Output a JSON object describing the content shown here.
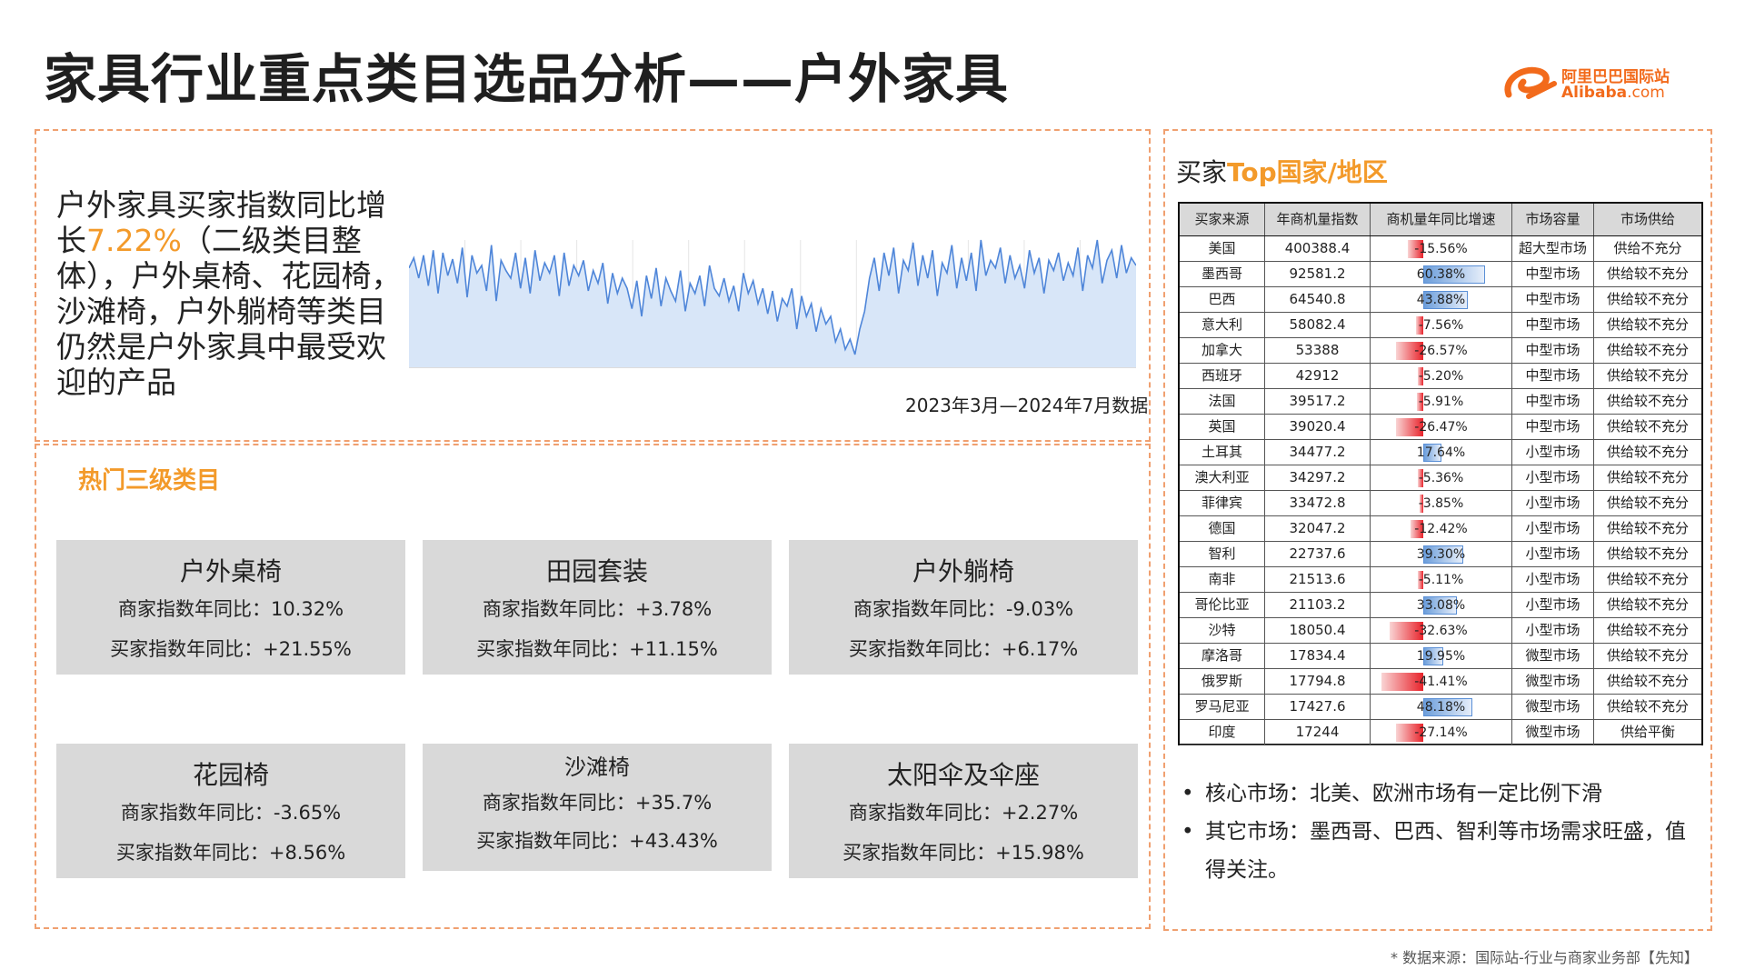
{
  "page_title": "家具行业重点类目选品分析——户外家具",
  "logo": {
    "cn": "阿里巴巴国际站",
    "en_main": "Alibaba",
    "en_suffix": ".com"
  },
  "intro": {
    "before": "户外家具买家指数同比增长",
    "highlight": "7.22%",
    "after": "（二级类目整体），户外桌椅、花园椅，沙滩椅，户外躺椅等类目仍然是户外家具中最受欢迎的产品"
  },
  "trend_caption": "2023年3月—2024年7月数据",
  "chart_data": {
    "type": "area",
    "title": "",
    "xlabel": "",
    "ylabel": "",
    "x_range": [
      "2023年3月",
      "2024年7月"
    ],
    "ylim": [
      0,
      100
    ],
    "values": [
      78,
      86,
      70,
      88,
      64,
      92,
      58,
      90,
      72,
      85,
      66,
      94,
      55,
      88,
      74,
      80,
      60,
      96,
      52,
      84,
      76,
      70,
      90,
      62,
      86,
      58,
      92,
      68,
      82,
      74,
      88,
      56,
      90,
      64,
      80,
      72,
      84,
      60,
      76,
      66,
      82,
      50,
      74,
      58,
      70,
      62,
      46,
      68,
      40,
      72,
      54,
      78,
      48,
      70,
      60,
      52,
      76,
      44,
      66,
      58,
      72,
      48,
      80,
      62,
      56,
      70,
      52,
      64,
      44,
      74,
      58,
      68,
      50,
      62,
      42,
      60,
      36,
      54,
      48,
      62,
      30,
      56,
      40,
      50,
      28,
      46,
      34,
      40,
      20,
      30,
      14,
      22,
      10,
      30,
      44,
      70,
      86,
      60,
      90,
      72,
      94,
      58,
      84,
      76,
      98,
      64,
      88,
      70,
      92,
      56,
      82,
      74,
      96,
      62,
      86,
      68,
      90,
      60,
      100,
      72,
      84,
      78,
      94,
      66,
      88,
      70,
      80,
      62,
      92,
      74,
      86,
      58,
      84,
      76,
      90,
      68,
      82,
      72,
      94,
      60,
      88,
      78,
      100,
      66,
      84,
      92,
      70,
      96,
      74,
      86,
      80
    ],
    "fill_color": "#d8e6f8",
    "line_color": "#4f86d9"
  },
  "categories_heading": "热门三级类目",
  "categories": [
    {
      "name": "户外桌椅",
      "seller_label": "商家指数年同比：",
      "seller": "10.32%",
      "buyer_label": "买家指数年同比：",
      "buyer": "+21.55%"
    },
    {
      "name": "田园套装",
      "seller_label": "商家指数年同比：",
      "seller": "+3.78%",
      "buyer_label": "买家指数年同比：",
      "buyer": "+11.15%"
    },
    {
      "name": "户外躺椅",
      "seller_label": "商家指数年同比：",
      "seller": "-9.03%",
      "buyer_label": "买家指数年同比：",
      "buyer": "+6.17%"
    },
    {
      "name": "花园椅",
      "seller_label": "商家指数年同比：",
      "seller": "-3.65%",
      "buyer_label": "买家指数年同比：",
      "buyer": "+8.56%"
    },
    {
      "name": "沙滩椅",
      "seller_label": "商家指数年同比：",
      "seller": "+35.7%",
      "buyer_label": "买家指数年同比：",
      "buyer": "+43.43%"
    },
    {
      "name": "太阳伞及伞座",
      "seller_label": "商家指数年同比：",
      "seller": "+2.27%",
      "buyer_label": "买家指数年同比：",
      "buyer": "+15.98%"
    }
  ],
  "right_title": {
    "prefix": "买家",
    "highlight": "Top国家/地区"
  },
  "table": {
    "headers": [
      "买家来源",
      "年商机量指数",
      "商机量年同比增速",
      "市场容量",
      "市场供给"
    ],
    "rows": [
      {
        "country": "美国",
        "index": "400388.4",
        "growth": "-15.56%",
        "growth_value": -15.56,
        "capacity": "超大型市场",
        "supply": "供给不充分"
      },
      {
        "country": "墨西哥",
        "index": "92581.2",
        "growth": "60.38%",
        "growth_value": 60.38,
        "capacity": "中型市场",
        "supply": "供给较不充分"
      },
      {
        "country": "巴西",
        "index": "64540.8",
        "growth": "43.88%",
        "growth_value": 43.88,
        "capacity": "中型市场",
        "supply": "供给较不充分"
      },
      {
        "country": "意大利",
        "index": "58082.4",
        "growth": "-7.56%",
        "growth_value": -7.56,
        "capacity": "中型市场",
        "supply": "供给较不充分"
      },
      {
        "country": "加拿大",
        "index": "53388",
        "growth": "-26.57%",
        "growth_value": -26.57,
        "capacity": "中型市场",
        "supply": "供给较不充分"
      },
      {
        "country": "西班牙",
        "index": "42912",
        "growth": "-5.20%",
        "growth_value": -5.2,
        "capacity": "中型市场",
        "supply": "供给较不充分"
      },
      {
        "country": "法国",
        "index": "39517.2",
        "growth": "-5.91%",
        "growth_value": -5.91,
        "capacity": "中型市场",
        "supply": "供给较不充分"
      },
      {
        "country": "英国",
        "index": "39020.4",
        "growth": "-26.47%",
        "growth_value": -26.47,
        "capacity": "中型市场",
        "supply": "供给较不充分"
      },
      {
        "country": "土耳其",
        "index": "34477.2",
        "growth": "17.64%",
        "growth_value": 17.64,
        "capacity": "小型市场",
        "supply": "供给较不充分"
      },
      {
        "country": "澳大利亚",
        "index": "34297.2",
        "growth": "-5.36%",
        "growth_value": -5.36,
        "capacity": "小型市场",
        "supply": "供给较不充分"
      },
      {
        "country": "菲律宾",
        "index": "33472.8",
        "growth": "-3.85%",
        "growth_value": -3.85,
        "capacity": "小型市场",
        "supply": "供给较不充分"
      },
      {
        "country": "德国",
        "index": "32047.2",
        "growth": "-12.42%",
        "growth_value": -12.42,
        "capacity": "小型市场",
        "supply": "供给较不充分"
      },
      {
        "country": "智利",
        "index": "22737.6",
        "growth": "39.30%",
        "growth_value": 39.3,
        "capacity": "小型市场",
        "supply": "供给较不充分"
      },
      {
        "country": "南非",
        "index": "21513.6",
        "growth": "-5.11%",
        "growth_value": -5.11,
        "capacity": "小型市场",
        "supply": "供给较不充分"
      },
      {
        "country": "哥伦比亚",
        "index": "21103.2",
        "growth": "33.08%",
        "growth_value": 33.08,
        "capacity": "小型市场",
        "supply": "供给较不充分"
      },
      {
        "country": "沙特",
        "index": "18050.4",
        "growth": "-32.63%",
        "growth_value": -32.63,
        "capacity": "小型市场",
        "supply": "供给较不充分"
      },
      {
        "country": "摩洛哥",
        "index": "17834.4",
        "growth": "19.95%",
        "growth_value": 19.95,
        "capacity": "微型市场",
        "supply": "供给较不充分"
      },
      {
        "country": "俄罗斯",
        "index": "17794.8",
        "growth": "-41.41%",
        "growth_value": -41.41,
        "capacity": "微型市场",
        "supply": "供给较不充分"
      },
      {
        "country": "罗马尼亚",
        "index": "17427.6",
        "growth": "48.18%",
        "growth_value": 48.18,
        "capacity": "微型市场",
        "supply": "供给较不充分"
      },
      {
        "country": "印度",
        "index": "17244",
        "growth": "-27.14%",
        "growth_value": -27.14,
        "capacity": "微型市场",
        "supply": "供给平衡"
      }
    ]
  },
  "bullets": [
    "核心市场：北美、欧洲市场有一定比例下滑",
    "其它市场：墨西哥、巴西、智利等市场需求旺盛，值得关注。"
  ],
  "footer": "* 数据来源：国际站-行业与商家业务部【先知】"
}
